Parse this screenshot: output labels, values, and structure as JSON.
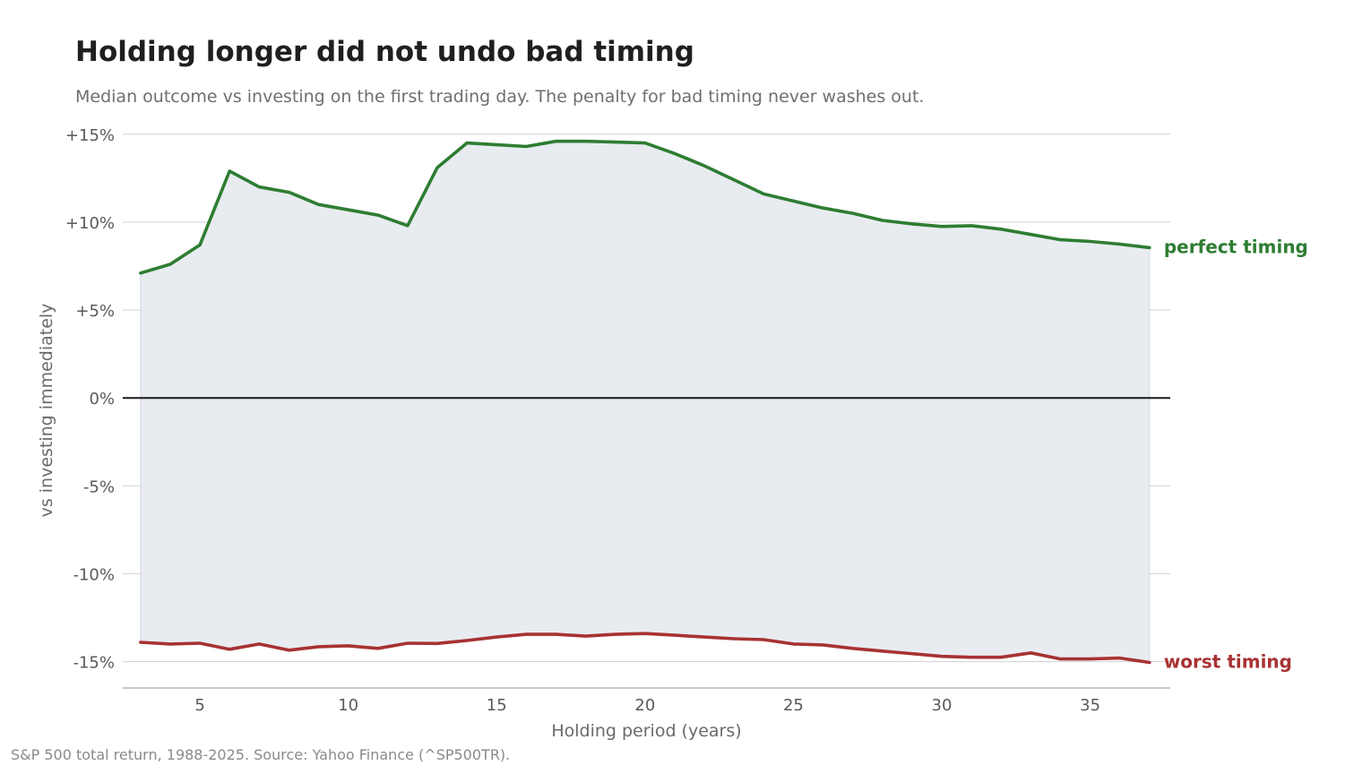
{
  "title": "Holding longer did not undo bad timing",
  "subtitle": "Median outcome vs investing on the first trading day. The penalty for bad timing never washes out.",
  "source": "S&P 500 total return, 1988-2025. Source: Yahoo Finance (^SP500TR).",
  "colors": {
    "perfect": "#2e7d32",
    "worst": "#a83232",
    "band": "#e8ecf0",
    "grid": "#d6d6d6",
    "zero": "#1a1a1a"
  },
  "chart_data": {
    "type": "line",
    "title": "Holding longer did not undo bad timing",
    "xlabel": "Holding period (years)",
    "ylabel": "vs investing immediately",
    "xlim": [
      2.4,
      37.7
    ],
    "ylim": [
      -16.5,
      15.5
    ],
    "xticks": [
      5,
      10,
      15,
      20,
      25,
      30,
      35
    ],
    "xtick_labels": [
      "5",
      "10",
      "15",
      "20",
      "25",
      "30",
      "35"
    ],
    "yticks": [
      15,
      10,
      5,
      0,
      -5,
      -10,
      -15
    ],
    "ytick_labels": [
      "+15%",
      "+10%",
      "+5%",
      "0%",
      "-5%",
      "-10%",
      "-15%"
    ],
    "grid": true,
    "legend": "direct labels at right end of lines",
    "shaded_band_between_series": true,
    "x": [
      3,
      4,
      5,
      6,
      7,
      8,
      9,
      10,
      11,
      12,
      13,
      14,
      15,
      16,
      17,
      18,
      19,
      20,
      21,
      22,
      23,
      24,
      25,
      26,
      27,
      28,
      29,
      30,
      31,
      32,
      33,
      34,
      35,
      36,
      37
    ],
    "series": [
      {
        "name": "perfect timing",
        "color": "#2e7d32",
        "values": [
          7.1,
          7.6,
          8.7,
          12.9,
          12.0,
          11.7,
          11.0,
          10.7,
          10.4,
          9.8,
          13.1,
          14.5,
          14.4,
          14.3,
          14.6,
          14.6,
          14.55,
          14.5,
          13.9,
          13.2,
          12.4,
          11.6,
          11.2,
          10.8,
          10.5,
          10.1,
          9.9,
          9.75,
          9.8,
          9.6,
          9.3,
          9.0,
          8.9,
          8.75,
          8.55
        ]
      },
      {
        "name": "worst timing",
        "color": "#a83232",
        "values": [
          -13.9,
          -14.0,
          -13.95,
          -14.3,
          -14.0,
          -14.35,
          -14.15,
          -14.1,
          -14.25,
          -13.95,
          -13.97,
          -13.8,
          -13.6,
          -13.45,
          -13.45,
          -13.55,
          -13.45,
          -13.4,
          -13.5,
          -13.6,
          -13.7,
          -13.75,
          -14.0,
          -14.05,
          -14.25,
          -14.4,
          -14.55,
          -14.7,
          -14.75,
          -14.75,
          -14.5,
          -14.85,
          -14.85,
          -14.8,
          -15.05
        ]
      }
    ]
  }
}
